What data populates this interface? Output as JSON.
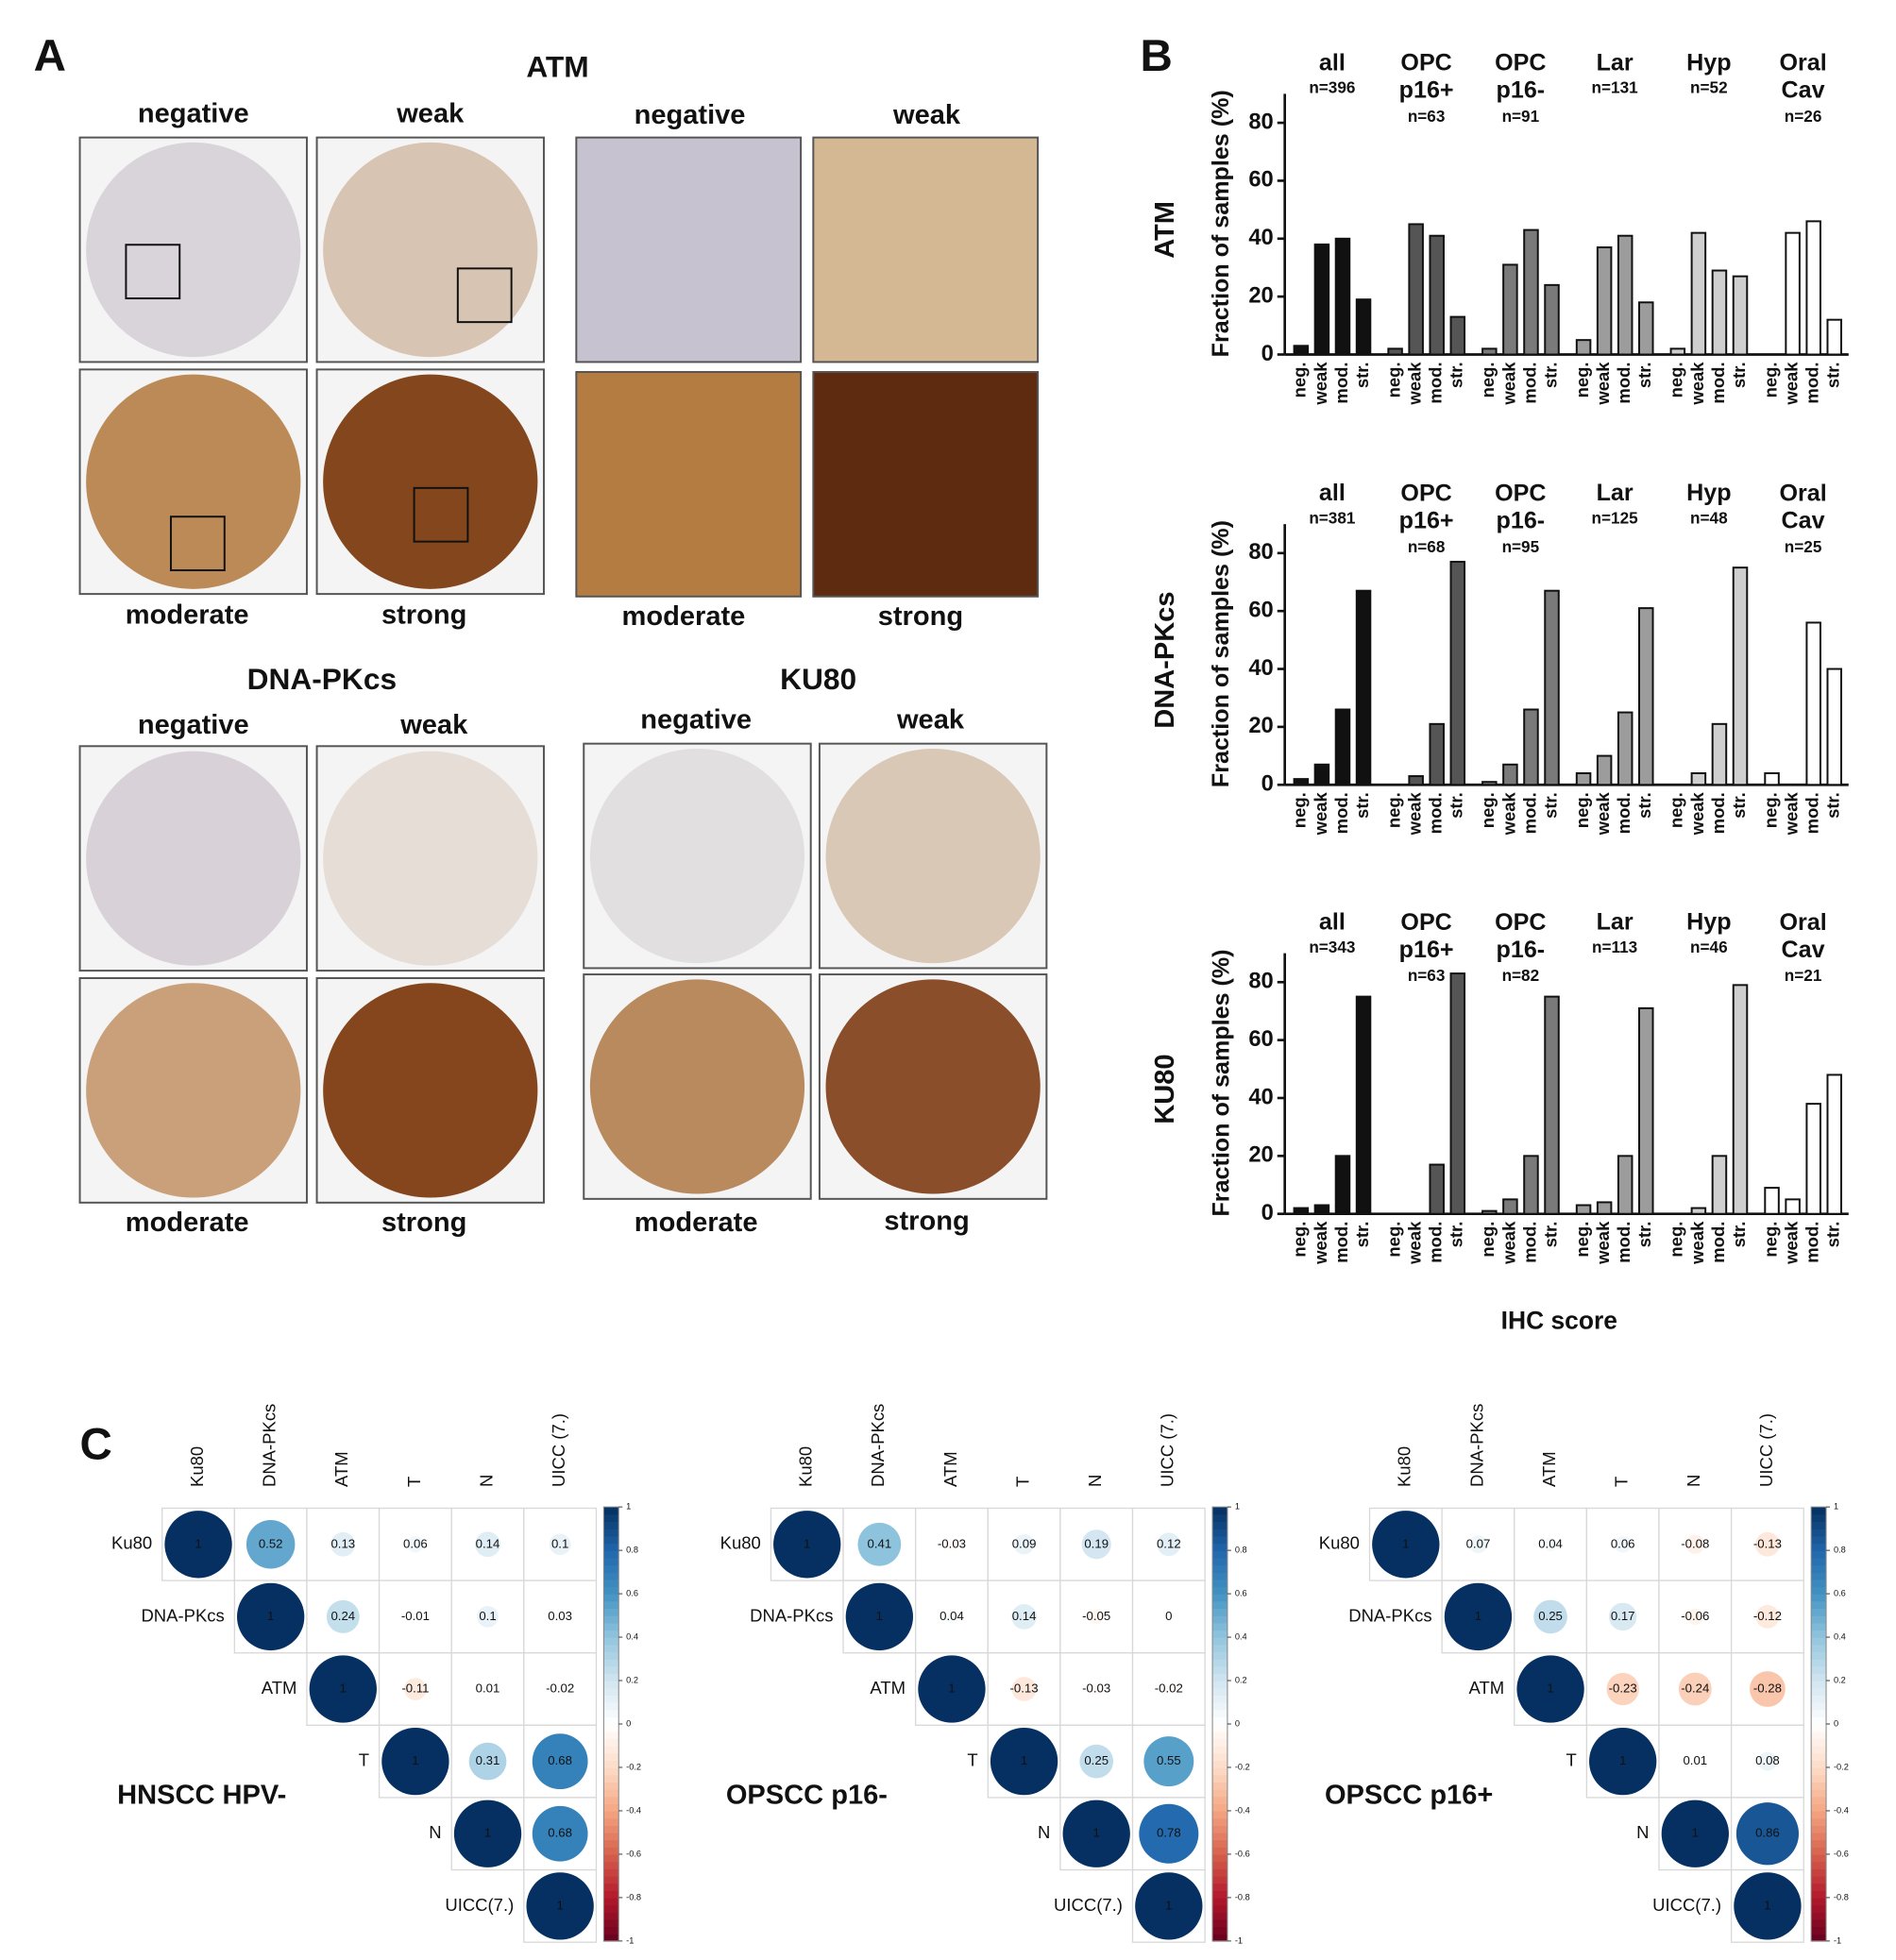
{
  "panel_labels": [
    "A",
    "B",
    "C"
  ],
  "panel_a": {
    "atm": {
      "title": "ATM",
      "tma_labels": [
        "negative",
        "weak",
        "moderate",
        "strong"
      ],
      "zoom_labels": [
        "negative",
        "weak",
        "moderate",
        "strong"
      ]
    },
    "dna_pkcs": {
      "title": "DNA-PKcs",
      "labels": [
        "negative",
        "weak",
        "moderate",
        "strong"
      ]
    },
    "ku80": {
      "title": "KU80",
      "labels": [
        "negative",
        "weak",
        "moderate",
        "strong"
      ]
    }
  },
  "panel_b_xlabel": "IHC score",
  "chart_data": [
    {
      "type": "grouped_bar",
      "protein": "ATM",
      "ylabel": "Fraction of samples (%)",
      "categories": [
        "neg.",
        "weak",
        "mod.",
        "str."
      ],
      "ylim": [
        0,
        90
      ],
      "yticks": [
        0,
        20,
        40,
        60,
        80
      ],
      "series": [
        {
          "name": "all",
          "n_label": "n=396",
          "color": "#111111",
          "values": [
            3,
            38,
            40,
            19
          ]
        },
        {
          "name": "OPC p16+",
          "n_label": "n=63",
          "color": "#555555",
          "values": [
            2,
            45,
            41,
            13
          ]
        },
        {
          "name": "OPC p16-",
          "n_label": "n=91",
          "color": "#7a7a7a",
          "values": [
            2,
            31,
            43,
            24
          ]
        },
        {
          "name": "Lar",
          "n_label": "n=131",
          "color": "#9c9c9c",
          "values": [
            5,
            37,
            41,
            18
          ]
        },
        {
          "name": "Hyp",
          "n_label": "n=52",
          "color": "#cfcfcf",
          "values": [
            2,
            42,
            29,
            27
          ]
        },
        {
          "name": "Oral Cav",
          "n_label": "n=26",
          "color": "#ffffff",
          "values": [
            0,
            42,
            46,
            12
          ]
        }
      ]
    },
    {
      "type": "grouped_bar",
      "protein": "DNA-PKcs",
      "ylabel": "Fraction of samples (%)",
      "categories": [
        "neg.",
        "weak",
        "mod.",
        "str."
      ],
      "ylim": [
        0,
        90
      ],
      "yticks": [
        0,
        20,
        40,
        60,
        80
      ],
      "series": [
        {
          "name": "all",
          "n_label": "n=381",
          "color": "#111111",
          "values": [
            2,
            7,
            26,
            67
          ]
        },
        {
          "name": "OPC p16+",
          "n_label": "n=68",
          "color": "#555555",
          "values": [
            0,
            3,
            21,
            77
          ]
        },
        {
          "name": "OPC p16-",
          "n_label": "n=95",
          "color": "#7a7a7a",
          "values": [
            1,
            7,
            26,
            67
          ]
        },
        {
          "name": "Lar",
          "n_label": "n=125",
          "color": "#9c9c9c",
          "values": [
            4,
            10,
            25,
            61
          ]
        },
        {
          "name": "Hyp",
          "n_label": "n=48",
          "color": "#cfcfcf",
          "values": [
            0,
            4,
            21,
            75
          ]
        },
        {
          "name": "Oral Cav",
          "n_label": "n=25",
          "color": "#ffffff",
          "values": [
            4,
            0,
            56,
            40
          ]
        }
      ]
    },
    {
      "type": "grouped_bar",
      "protein": "KU80",
      "ylabel": "Fraction of samples (%)",
      "categories": [
        "neg.",
        "weak",
        "mod.",
        "str."
      ],
      "ylim": [
        0,
        90
      ],
      "yticks": [
        0,
        20,
        40,
        60,
        80
      ],
      "series": [
        {
          "name": "all",
          "n_label": "n=343",
          "color": "#111111",
          "values": [
            2,
            3,
            20,
            75
          ]
        },
        {
          "name": "OPC p16+",
          "n_label": "n=63",
          "color": "#555555",
          "values": [
            0,
            0,
            17,
            83
          ]
        },
        {
          "name": "OPC p16-",
          "n_label": "n=82",
          "color": "#7a7a7a",
          "values": [
            1,
            5,
            20,
            75
          ]
        },
        {
          "name": "Lar",
          "n_label": "n=113",
          "color": "#9c9c9c",
          "values": [
            3,
            4,
            20,
            71
          ]
        },
        {
          "name": "Hyp",
          "n_label": "n=46",
          "color": "#cfcfcf",
          "values": [
            0,
            2,
            20,
            79
          ]
        },
        {
          "name": "Oral Cav",
          "n_label": "n=21",
          "color": "#ffffff",
          "values": [
            9,
            5,
            38,
            48
          ]
        }
      ]
    },
    {
      "type": "corrplot",
      "title": "HNSCC HPV-",
      "col_labels": [
        "Ku80",
        "DNA-PKcs",
        "ATM",
        "T",
        "N",
        "UICC (7.)"
      ],
      "row_labels": [
        "Ku80",
        "DNA-PKcs",
        "ATM",
        "T",
        "N",
        "UICC(7.)"
      ],
      "rows": [
        [
          1,
          0.52,
          0.13,
          0.06,
          0.14,
          0.1
        ],
        [
          1,
          0.24,
          -0.01,
          0.1,
          0.03
        ],
        [
          1,
          -0.11,
          0.01,
          -0.02
        ],
        [
          1,
          0.31,
          0.68
        ],
        [
          1,
          0.68
        ],
        [
          1
        ]
      ],
      "clim": [
        -1,
        1
      ],
      "cbar_ticks": [
        1,
        0.8,
        0.6,
        0.4,
        0.2,
        0,
        -0.2,
        -0.4,
        -0.6,
        -0.8,
        -1
      ],
      "colorscale": [
        "#67001f",
        "#b2182b",
        "#d6604d",
        "#f4a582",
        "#fddbc7",
        "#ffffff",
        "#d1e5f0",
        "#92c5de",
        "#4393c3",
        "#2166ac",
        "#053061"
      ]
    },
    {
      "type": "corrplot",
      "title": "OPSCC p16-",
      "col_labels": [
        "Ku80",
        "DNA-PKcs",
        "ATM",
        "T",
        "N",
        "UICC (7.)"
      ],
      "row_labels": [
        "Ku80",
        "DNA-PKcs",
        "ATM",
        "T",
        "N",
        "UICC(7.)"
      ],
      "rows": [
        [
          1,
          0.41,
          -0.03,
          0.09,
          0.19,
          0.12
        ],
        [
          1,
          0.04,
          0.14,
          -0.05,
          0
        ],
        [
          1,
          -0.13,
          -0.03,
          -0.02
        ],
        [
          1,
          0.25,
          0.55
        ],
        [
          1,
          0.78
        ],
        [
          1
        ]
      ],
      "clim": [
        -1,
        1
      ],
      "cbar_ticks": [
        1,
        0.8,
        0.6,
        0.4,
        0.2,
        0,
        -0.2,
        -0.4,
        -0.6,
        -0.8,
        -1
      ],
      "colorscale": [
        "#67001f",
        "#b2182b",
        "#d6604d",
        "#f4a582",
        "#fddbc7",
        "#ffffff",
        "#d1e5f0",
        "#92c5de",
        "#4393c3",
        "#2166ac",
        "#053061"
      ]
    },
    {
      "type": "corrplot",
      "title": "OPSCC p16+",
      "col_labels": [
        "Ku80",
        "DNA-PKcs",
        "ATM",
        "T",
        "N",
        "UICC (7.)"
      ],
      "row_labels": [
        "Ku80",
        "DNA-PKcs",
        "ATM",
        "T",
        "N",
        "UICC(7.)"
      ],
      "rows": [
        [
          1,
          0.07,
          0.04,
          0.06,
          -0.08,
          -0.13
        ],
        [
          1,
          0.25,
          0.17,
          -0.06,
          -0.12
        ],
        [
          1,
          -0.23,
          -0.24,
          -0.28
        ],
        [
          1,
          0.01,
          0.08
        ],
        [
          1,
          0.86
        ],
        [
          1
        ]
      ],
      "clim": [
        -1,
        1
      ],
      "cbar_ticks": [
        1,
        0.8,
        0.6,
        0.4,
        0.2,
        0,
        -0.2,
        -0.4,
        -0.6,
        -0.8,
        -1
      ],
      "colorscale": [
        "#67001f",
        "#b2182b",
        "#d6604d",
        "#f4a582",
        "#fddbc7",
        "#ffffff",
        "#d1e5f0",
        "#92c5de",
        "#4393c3",
        "#2166ac",
        "#053061"
      ]
    }
  ]
}
